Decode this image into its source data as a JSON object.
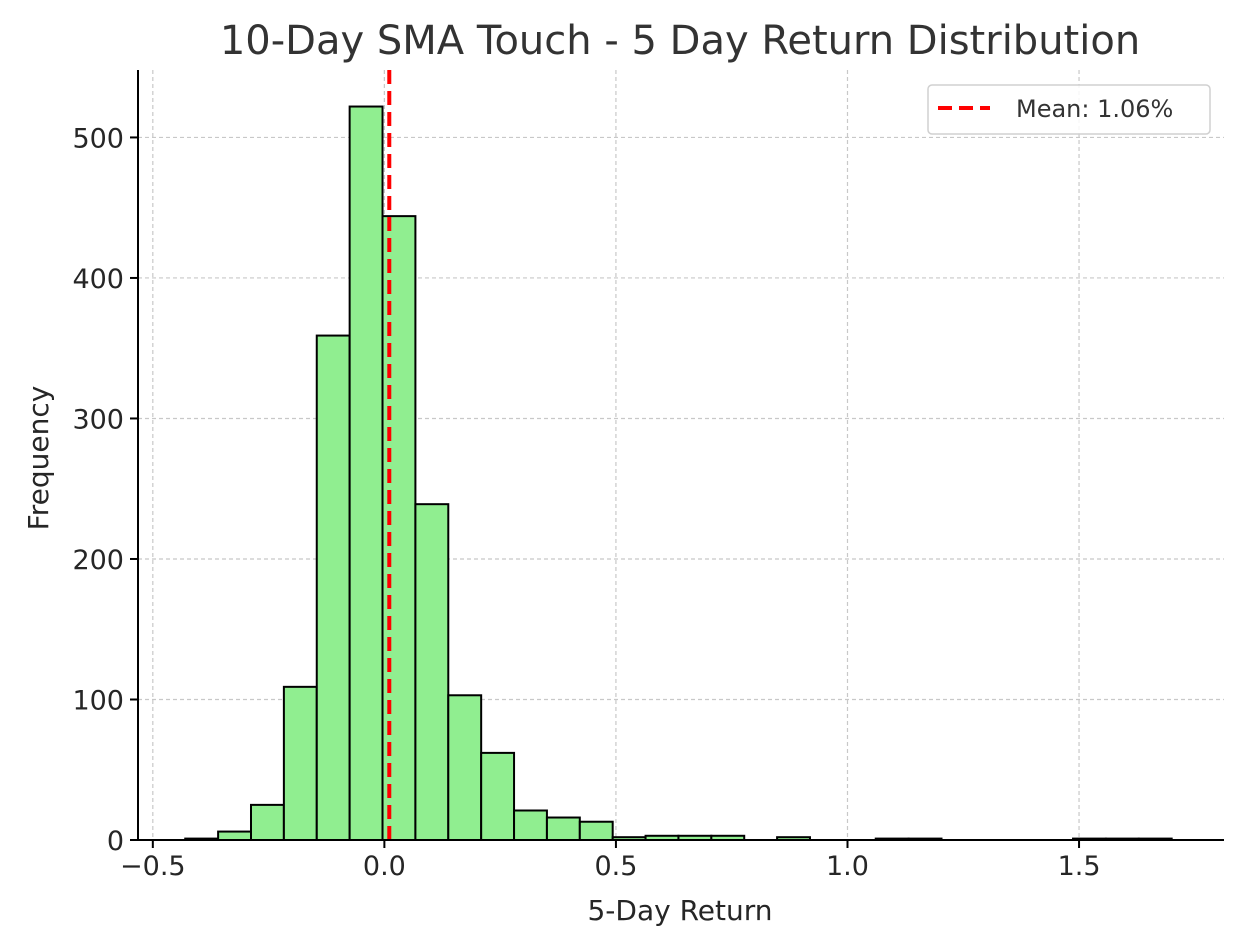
{
  "chart_data": {
    "type": "bar",
    "title": "10-Day SMA Touch - 5 Day Return Distribution",
    "xlabel": "5-Day Return",
    "ylabel": "Frequency",
    "xlim": [
      -0.532,
      1.813
    ],
    "ylim": [
      0,
      548
    ],
    "xticks": [
      {
        "value": -0.5,
        "label": "−0.5"
      },
      {
        "value": 0.0,
        "label": "0.0"
      },
      {
        "value": 0.5,
        "label": "0.5"
      },
      {
        "value": 1.0,
        "label": "1.0"
      },
      {
        "value": 1.5,
        "label": "1.5"
      }
    ],
    "yticks": [
      {
        "value": 0,
        "label": "0"
      },
      {
        "value": 100,
        "label": "100"
      },
      {
        "value": 200,
        "label": "200"
      },
      {
        "value": 300,
        "label": "300"
      },
      {
        "value": 400,
        "label": "400"
      },
      {
        "value": 500,
        "label": "500"
      }
    ],
    "grid": true,
    "legend_position": "top-right",
    "bar_color": "#90ee90",
    "bar_edge_color": "#000000",
    "mean_line_color": "#ff0000",
    "bin_edges": [
      -0.43,
      -0.359,
      -0.288,
      -0.217,
      -0.146,
      -0.075,
      -0.004,
      0.067,
      0.138,
      0.209,
      0.28,
      0.351,
      0.422,
      0.493,
      0.564,
      0.635,
      0.706,
      0.777,
      0.848,
      0.919,
      0.99,
      1.061,
      1.132,
      1.203,
      1.274,
      1.345,
      1.416,
      1.487,
      1.558,
      1.629,
      1.7
    ],
    "counts": [
      1,
      6,
      25,
      109,
      359,
      522,
      444,
      239,
      103,
      62,
      21,
      16,
      13,
      2,
      3,
      3,
      3,
      0,
      2,
      0,
      0,
      1,
      1,
      0,
      0,
      0,
      0,
      1,
      1,
      1
    ],
    "mean": {
      "value": 0.0106,
      "label": "Mean: 1.06%"
    }
  }
}
